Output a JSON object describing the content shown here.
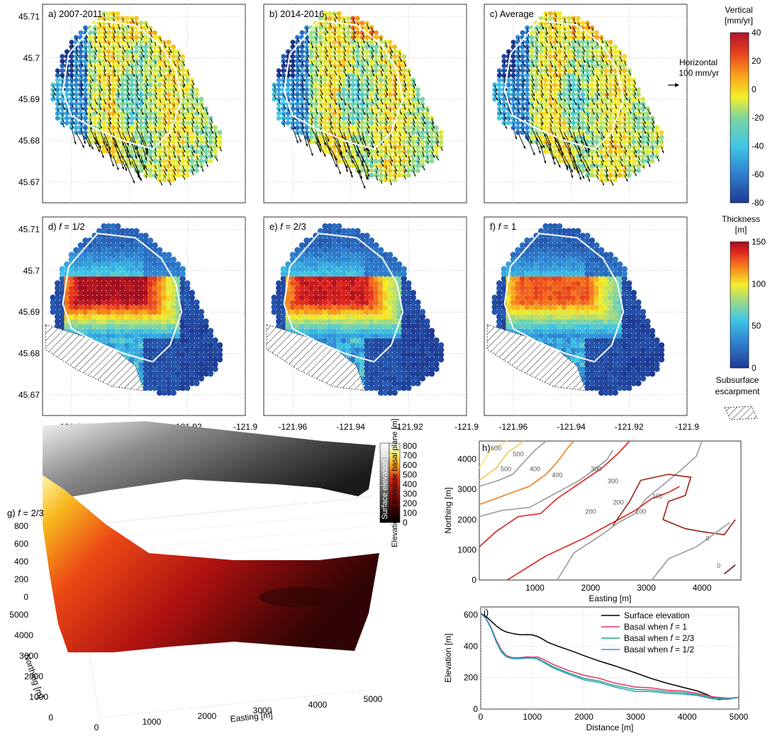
{
  "map_panels": {
    "lon_ticks": [
      "-121.96",
      "-121.94",
      "-121.92",
      "-121.9"
    ],
    "lon_values": [
      -121.96,
      -121.94,
      -121.92,
      -121.9
    ],
    "lat_ticks": [
      "45.71",
      "45.7",
      "45.69",
      "45.68",
      "45.67"
    ],
    "lat_values": [
      45.71,
      45.7,
      45.69,
      45.68,
      45.67
    ],
    "xlim": [
      -121.97,
      -121.9
    ],
    "ylim": [
      45.665,
      45.713
    ],
    "top_row_titles": [
      "a) 2007-2011",
      "b) 2014-2016",
      "c) Average"
    ],
    "mid_row_prefix": [
      "d) ",
      "e) ",
      "f) "
    ],
    "mid_row_f": [
      "1/2",
      "2/3",
      "1"
    ],
    "f_symbol": "f",
    "f_eq": " = "
  },
  "vertical_colorbar": {
    "title_line1": "Vertical",
    "title_line2": "[mm/yr]",
    "ticks": [
      "40",
      "20",
      "0",
      "-20",
      "-40",
      "-60",
      "-80"
    ],
    "range": [
      -80,
      40
    ],
    "horizontal_label_line1": "Horizontal",
    "horizontal_label_line2": "100 mm/yr"
  },
  "thickness_colorbar": {
    "title_line1": "Thickness",
    "title_line2": "[m]",
    "ticks": [
      "150",
      "100",
      "50",
      "0"
    ],
    "range": [
      0,
      150
    ]
  },
  "escarpment_legend": {
    "line1": "Subsurface",
    "line2": "escarpment"
  },
  "panel_g": {
    "title_prefix": "g) ",
    "f_value": "2/3",
    "z_ticks": [
      "800",
      "600",
      "400",
      "200",
      "0"
    ],
    "northing_ticks": [
      "5000",
      "4000",
      "3000",
      "2000",
      "1000",
      "0"
    ],
    "easting_ticks": [
      "0",
      "1000",
      "2000",
      "3000",
      "4000",
      "5000"
    ],
    "northing_label": "Northing [m]",
    "easting_label": "Easting [m]",
    "colorbar_ticks": [
      "800",
      "700",
      "600",
      "500",
      "400",
      "300",
      "200",
      "100",
      "0"
    ],
    "colorbar_label_surface": "Surface elevation [m]",
    "colorbar_label_basal": "Elevation of landslide basal plane [m]"
  },
  "chart_data": [
    {
      "type": "scatter",
      "id": "panels-a-c",
      "description_printed": [
        "a) 2007-2011",
        "b) 2014-2016",
        "c) Average"
      ],
      "xlabel": "",
      "ylabel": "",
      "xlim": [
        -121.97,
        -121.9
      ],
      "ylim": [
        45.665,
        45.713
      ],
      "color_variable": "Vertical [mm/yr]",
      "color_range": [
        -80,
        40
      ]
    },
    {
      "type": "scatter",
      "id": "panels-d-f",
      "color_variable": "Thickness [m]",
      "color_range": [
        0,
        150
      ],
      "f_values": [
        "1/2",
        "2/3",
        "1"
      ]
    },
    {
      "type": "line",
      "id": "panel-h",
      "title": "h)",
      "xlabel": "Easting [m]",
      "ylabel": "Northing [m]",
      "xlim": [
        0,
        4700
      ],
      "ylim": [
        0,
        4600
      ],
      "x_ticks": [
        1000,
        2000,
        3000,
        4000
      ],
      "y_ticks": [
        0,
        1000,
        2000,
        3000,
        4000
      ],
      "contour_labels": [
        "600",
        "500",
        "500",
        "400",
        "400",
        "300",
        "300",
        "200",
        "200",
        "100",
        "100",
        "0",
        "0"
      ]
    },
    {
      "type": "line",
      "id": "panel-i",
      "title": "i)",
      "xlabel": "Distance [m]",
      "ylabel": "Elevation [m]",
      "xlim": [
        0,
        5000
      ],
      "ylim": [
        0,
        650
      ],
      "x_ticks": [
        0,
        1000,
        2000,
        3000,
        4000,
        5000
      ],
      "y_ticks": [
        0,
        200,
        400,
        600
      ],
      "legend_position": "top-right",
      "series": [
        {
          "name": "Surface elevation",
          "color": "#000000",
          "x": [
            0,
            100,
            200,
            300,
            400,
            500,
            600,
            700,
            800,
            900,
            1000,
            1100,
            1200,
            1300,
            1500,
            1800,
            2000,
            2300,
            2600,
            3000,
            3300,
            3600,
            3900,
            4200,
            4400,
            4600,
            4800,
            5000
          ],
          "y": [
            610,
            590,
            560,
            530,
            505,
            490,
            482,
            476,
            473,
            474,
            472,
            462,
            445,
            425,
            400,
            365,
            340,
            305,
            275,
            230,
            195,
            165,
            140,
            115,
            90,
            60,
            65,
            75
          ]
        },
        {
          "name_prefix": "Basal when ",
          "name_f": "f",
          "name_suffix": " = 1",
          "color": "#e0306a",
          "x": [
            0,
            100,
            200,
            300,
            400,
            500,
            600,
            700,
            800,
            900,
            1000,
            1100,
            1200,
            1400,
            1700,
            2000,
            2300,
            2600,
            3000,
            3300,
            3600,
            3900,
            4200,
            4500,
            4800,
            5000
          ],
          "y": [
            610,
            580,
            520,
            440,
            375,
            340,
            328,
            326,
            328,
            332,
            330,
            332,
            318,
            285,
            245,
            215,
            195,
            165,
            140,
            135,
            120,
            115,
            100,
            78,
            68,
            75
          ]
        },
        {
          "name_prefix": "Basal when ",
          "name_f": "f",
          "name_suffix": " = 2/3",
          "color": "#20a878",
          "x": [
            0,
            100,
            200,
            300,
            400,
            500,
            600,
            700,
            800,
            900,
            1000,
            1100,
            1200,
            1400,
            1700,
            2000,
            2300,
            2600,
            3000,
            3300,
            3600,
            3900,
            4200,
            4500,
            4800,
            5000
          ],
          "y": [
            610,
            578,
            515,
            432,
            368,
            335,
            325,
            322,
            324,
            326,
            326,
            322,
            305,
            270,
            230,
            196,
            178,
            150,
            125,
            122,
            110,
            105,
            92,
            70,
            64,
            75
          ]
        },
        {
          "name_prefix": "Basal when ",
          "name_f": "f",
          "name_suffix": " = 1/2",
          "color": "#2f9ad0",
          "x": [
            0,
            100,
            200,
            300,
            400,
            500,
            600,
            700,
            800,
            900,
            1000,
            1100,
            1200,
            1400,
            1700,
            2000,
            2300,
            2600,
            3000,
            3300,
            3600,
            3900,
            4200,
            4500,
            4800,
            5000
          ],
          "y": [
            610,
            576,
            512,
            428,
            362,
            332,
            322,
            320,
            322,
            324,
            324,
            318,
            300,
            262,
            222,
            186,
            168,
            140,
            112,
            112,
            100,
            96,
            86,
            64,
            62,
            75
          ]
        }
      ]
    }
  ]
}
